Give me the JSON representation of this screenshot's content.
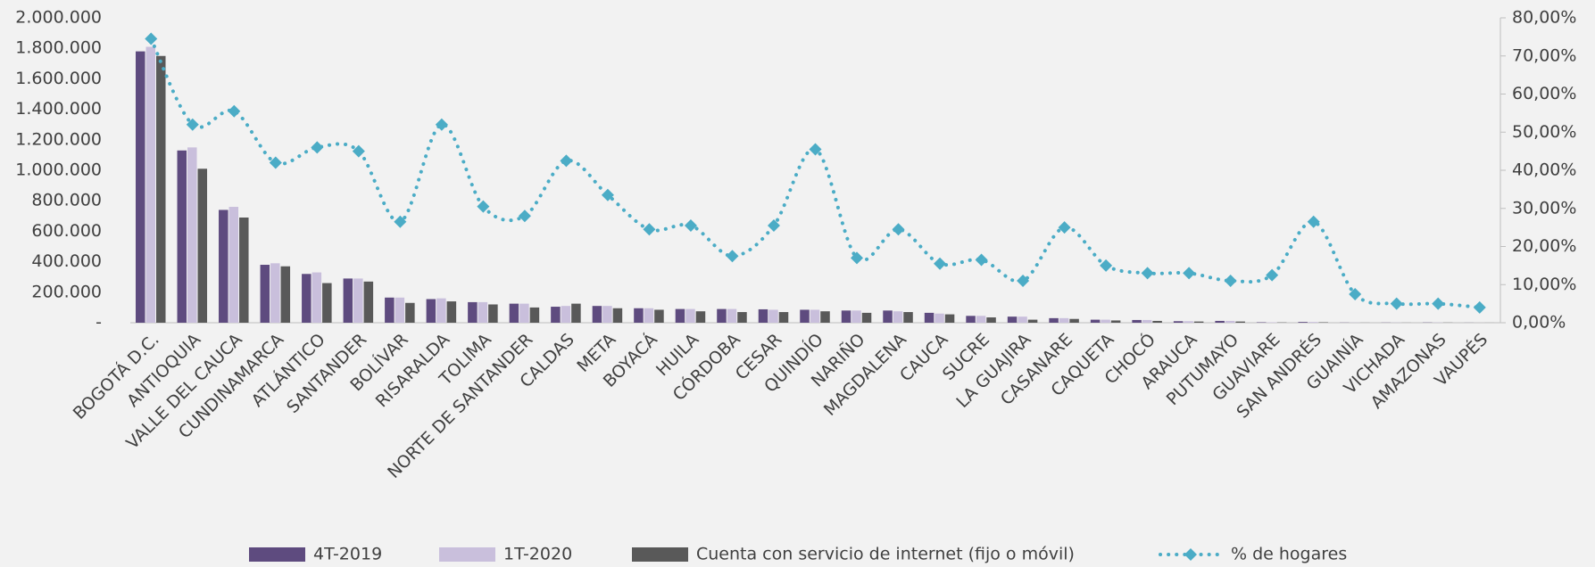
{
  "chart_data": {
    "type": "combo",
    "categories": [
      "BOGOTÁ D.C.",
      "ANTIOQUIA",
      "VALLE DEL CAUCA",
      "CUNDINAMARCA",
      "ATLÁNTICO",
      "SANTANDER",
      "BOLÍVAR",
      "RISARALDA",
      "TOLIMA",
      "NORTE DE SANTANDER",
      "CALDAS",
      "META",
      "BOYACÁ",
      "HUILA",
      "CÓRDOBA",
      "CESAR",
      "QUINDÍO",
      "NARIÑO",
      "MAGDALENA",
      "CAUCA",
      "SUCRE",
      "LA GUAJIRA",
      "CASANARE",
      "CAQUETA",
      "CHOCÓ",
      "ARAUCA",
      "PUTUMAYO",
      "GUAVIARE",
      "SAN ANDRÉS",
      "GUAINÍA",
      "VICHADA",
      "AMAZONAS",
      "VAUPÉS"
    ],
    "series": [
      {
        "name": "4T-2019",
        "type": "bar",
        "color": "#5e4b7f",
        "values": [
          1780000,
          1130000,
          740000,
          380000,
          320000,
          290000,
          165000,
          155000,
          135000,
          125000,
          105000,
          110000,
          95000,
          90000,
          90000,
          88000,
          85000,
          80000,
          80000,
          65000,
          45000,
          40000,
          30000,
          20000,
          18000,
          10000,
          12000,
          3000,
          5000,
          1000,
          1000,
          1500,
          500
        ]
      },
      {
        "name": "1T-2020",
        "type": "bar",
        "color": "#c9bfdc",
        "values": [
          1810000,
          1150000,
          760000,
          390000,
          330000,
          290000,
          165000,
          160000,
          135000,
          125000,
          110000,
          110000,
          95000,
          90000,
          90000,
          85000,
          85000,
          80000,
          75000,
          60000,
          45000,
          40000,
          30000,
          20000,
          18000,
          10000,
          12000,
          3000,
          5000,
          1000,
          1000,
          1500,
          500
        ]
      },
      {
        "name": "Cuenta con servicio de internet (fijo o móvil)",
        "type": "bar",
        "color": "#595959",
        "values": [
          1750000,
          1010000,
          690000,
          370000,
          260000,
          270000,
          130000,
          140000,
          120000,
          100000,
          125000,
          95000,
          85000,
          75000,
          70000,
          70000,
          75000,
          65000,
          70000,
          55000,
          35000,
          20000,
          25000,
          15000,
          12000,
          8000,
          8000,
          2000,
          3000,
          500,
          500,
          1000,
          300
        ]
      },
      {
        "name": "% de hogares",
        "type": "line",
        "axis": "y2",
        "color": "#4bacc6",
        "values": [
          74.5,
          52,
          55.5,
          42,
          46,
          45,
          26.5,
          52,
          30.5,
          28,
          42.5,
          33.5,
          24.5,
          25.5,
          17.5,
          25.5,
          45.5,
          17,
          24.5,
          15.5,
          16.5,
          11,
          25,
          15,
          13,
          13,
          11,
          12.5,
          26.5,
          7.5,
          5,
          5,
          4
        ]
      }
    ],
    "ylim": [
      0,
      2000000
    ],
    "yticks": [
      {
        "value": 0,
        "label": "-"
      },
      {
        "value": 200000,
        "label": "200.000"
      },
      {
        "value": 400000,
        "label": "400.000"
      },
      {
        "value": 600000,
        "label": "600.000"
      },
      {
        "value": 800000,
        "label": "800.000"
      },
      {
        "value": 1000000,
        "label": "1.000.000"
      },
      {
        "value": 1200000,
        "label": "1.200.000"
      },
      {
        "value": 1400000,
        "label": "1.400.000"
      },
      {
        "value": 1600000,
        "label": "1.600.000"
      },
      {
        "value": 1800000,
        "label": "1.800.000"
      },
      {
        "value": 2000000,
        "label": "2.000.000"
      }
    ],
    "y2lim": [
      0,
      80
    ],
    "y2ticks": [
      {
        "value": 0,
        "label": "0,00%"
      },
      {
        "value": 10,
        "label": "10,00%"
      },
      {
        "value": 20,
        "label": "20,00%"
      },
      {
        "value": 30,
        "label": "30,00%"
      },
      {
        "value": 40,
        "label": "40,00%"
      },
      {
        "value": 50,
        "label": "50,00%"
      },
      {
        "value": 60,
        "label": "60,00%"
      },
      {
        "value": 70,
        "label": "70,00%"
      },
      {
        "value": 80,
        "label": "80,00%"
      }
    ],
    "legend": "bottom"
  }
}
